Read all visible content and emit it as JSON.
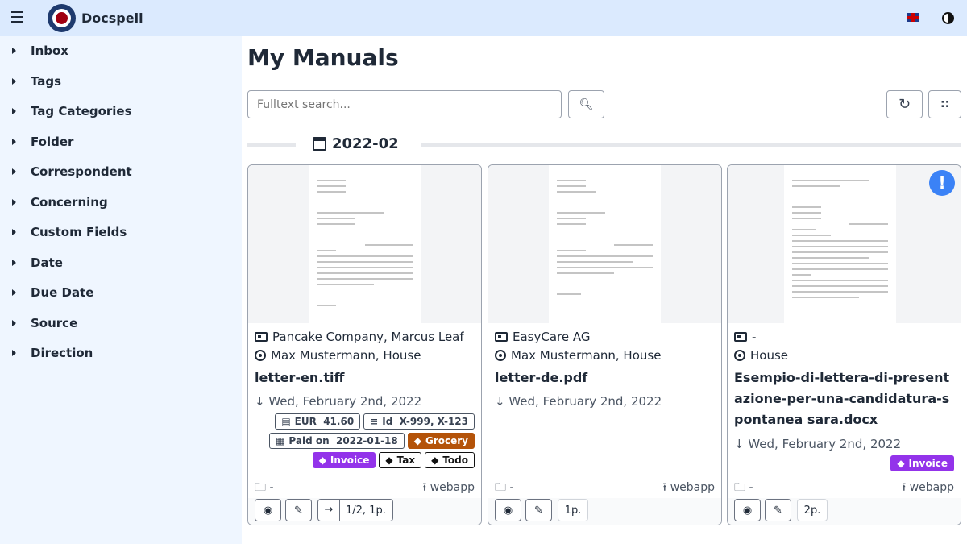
{
  "header": {
    "brand": "Docspell",
    "menu_icon": "hamburger-icon",
    "language": "en-GB",
    "theme_icon": "contrast-icon"
  },
  "sidebar": {
    "items": [
      {
        "label": "Inbox"
      },
      {
        "label": "Tags"
      },
      {
        "label": "Tag Categories"
      },
      {
        "label": "Folder"
      },
      {
        "label": "Correspondent"
      },
      {
        "label": "Concerning"
      },
      {
        "label": "Custom Fields"
      },
      {
        "label": "Date"
      },
      {
        "label": "Due Date"
      },
      {
        "label": "Source"
      },
      {
        "label": "Direction"
      }
    ]
  },
  "main": {
    "title": "My Manuals",
    "search": {
      "placeholder": "Fulltext search...",
      "value": ""
    },
    "group_label": "2022-02"
  },
  "colors": {
    "header": "#dbeafe",
    "sidebar": "#eff6ff",
    "tag_orange": "#b45309",
    "tag_purple": "#9333ea",
    "alert": "#3b82f6"
  },
  "cards": [
    {
      "correspondent": "Pancake Company, Marcus Leaf",
      "concerning": "Max Mustermann, House",
      "name": "letter-en.tiff",
      "date": "Wed, February 2nd, 2022",
      "fields": [
        {
          "label": "EUR  41.60"
        },
        {
          "label": "Id  X-999, X-123"
        },
        {
          "label": "Paid on  2022-01-18"
        }
      ],
      "tags": [
        {
          "label": "Grocery"
        },
        {
          "label": "Invoice"
        },
        {
          "label": "Tax"
        },
        {
          "label": "Todo"
        }
      ],
      "folder": "-",
      "source": "webapp",
      "pages": "1/2, 1p."
    },
    {
      "correspondent": "EasyCare AG",
      "concerning": "Max Mustermann, House",
      "name": "letter-de.pdf",
      "date": "Wed, February 2nd, 2022",
      "folder": "-",
      "source": "webapp",
      "pages": "1p."
    },
    {
      "correspondent": "-",
      "concerning": "House",
      "name": "Esempio-di-lettera-di-presentazione-per-una-candidatura-spontanea sara.docx",
      "date": "Wed, February 2nd, 2022",
      "tags": [
        {
          "label": "Invoice"
        }
      ],
      "folder": "-",
      "source": "webapp",
      "pages": "2p.",
      "alert": "!"
    }
  ]
}
